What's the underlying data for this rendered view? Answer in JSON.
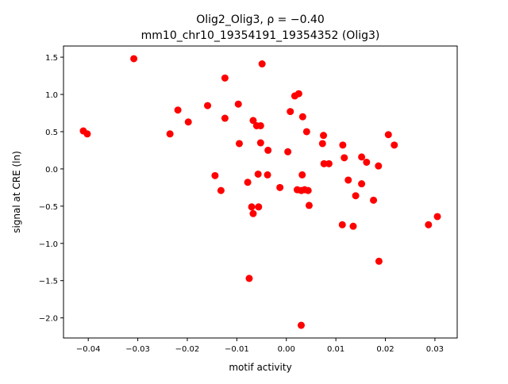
{
  "chart_data": {
    "type": "scatter",
    "title_line1": "Olig2_Olig3, ρ = −0.40",
    "title_line2": "mm10_chr10_19354191_19354352 (Olig3)",
    "xlabel": "motif activity",
    "ylabel": "signal at CRE (ln)",
    "xlim": [
      -0.045,
      0.0345
    ],
    "ylim": [
      -2.27,
      1.65
    ],
    "xticks": [
      -0.04,
      -0.03,
      -0.02,
      -0.01,
      0.0,
      0.01,
      0.02,
      0.03
    ],
    "xtick_labels": [
      "−0.04",
      "−0.03",
      "−0.02",
      "−0.01",
      "0.00",
      "0.01",
      "0.02",
      "0.03"
    ],
    "yticks": [
      1.5,
      1.0,
      0.5,
      0.0,
      -0.5,
      -1.0,
      -1.5,
      -2.0
    ],
    "ytick_labels": [
      "1.5",
      "1.0",
      "0.5",
      "0.0",
      "−0.5",
      "−1.0",
      "−1.5",
      "−2.0"
    ],
    "marker_color": "#ff0000",
    "grid": false,
    "points": [
      [
        -0.041,
        0.51
      ],
      [
        -0.0402,
        0.47
      ],
      [
        -0.0308,
        1.48
      ],
      [
        -0.0235,
        0.47
      ],
      [
        -0.0219,
        0.79
      ],
      [
        -0.0198,
        0.63
      ],
      [
        -0.0159,
        0.85
      ],
      [
        -0.0144,
        -0.09
      ],
      [
        -0.0132,
        -0.29
      ],
      [
        -0.0124,
        1.22
      ],
      [
        -0.0124,
        0.68
      ],
      [
        -0.0097,
        0.87
      ],
      [
        -0.0095,
        0.34
      ],
      [
        -0.0078,
        -0.18
      ],
      [
        -0.0075,
        -1.47
      ],
      [
        -0.0067,
        0.65
      ],
      [
        -0.006,
        0.58
      ],
      [
        -0.0052,
        0.58
      ],
      [
        -0.0052,
        0.35
      ],
      [
        -0.0037,
        0.25
      ],
      [
        0.0008,
        0.77
      ],
      [
        0.0017,
        0.98
      ],
      [
        0.0025,
        1.01
      ],
      [
        0.0033,
        0.7
      ],
      [
        0.0041,
        0.5
      ],
      [
        0.0003,
        0.23
      ],
      [
        0.0075,
        0.45
      ],
      [
        0.0073,
        0.34
      ],
      [
        0.0114,
        0.32
      ],
      [
        0.0117,
        0.15
      ],
      [
        0.0076,
        0.07
      ],
      [
        0.0086,
        0.07
      ],
      [
        -0.0057,
        -0.07
      ],
      [
        -0.0038,
        -0.08
      ],
      [
        -0.0013,
        -0.25
      ],
      [
        0.0032,
        -0.08
      ],
      [
        0.0022,
        -0.28
      ],
      [
        0.003,
        -0.29
      ],
      [
        0.0037,
        -0.28
      ],
      [
        0.0044,
        -0.29
      ],
      [
        0.0046,
        -0.49
      ],
      [
        -0.007,
        -0.51
      ],
      [
        -0.0056,
        -0.51
      ],
      [
        -0.0067,
        -0.6
      ],
      [
        0.0206,
        0.46
      ],
      [
        0.0218,
        0.32
      ],
      [
        0.0152,
        0.16
      ],
      [
        0.0162,
        0.09
      ],
      [
        0.0186,
        0.04
      ],
      [
        0.0125,
        -0.15
      ],
      [
        0.0152,
        -0.2
      ],
      [
        0.014,
        -0.36
      ],
      [
        0.0176,
        -0.42
      ],
      [
        0.0113,
        -0.75
      ],
      [
        0.0135,
        -0.77
      ],
      [
        0.0187,
        -1.24
      ],
      [
        0.0287,
        -0.75
      ],
      [
        0.0305,
        -0.64
      ],
      [
        -0.0049,
        1.41
      ],
      [
        0.003,
        -2.1
      ]
    ]
  }
}
